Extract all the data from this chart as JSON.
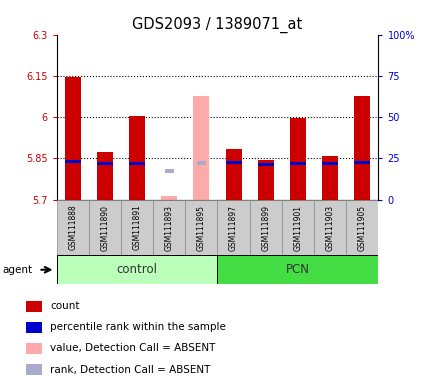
{
  "title": "GDS2093 / 1389071_at",
  "samples": [
    "GSM111888",
    "GSM111890",
    "GSM111891",
    "GSM111893",
    "GSM111895",
    "GSM111897",
    "GSM111899",
    "GSM111901",
    "GSM111903",
    "GSM111905"
  ],
  "ylim_left": [
    5.7,
    6.3
  ],
  "ylim_right": [
    0,
    100
  ],
  "yticks_left": [
    5.7,
    5.85,
    6.0,
    6.15,
    6.3
  ],
  "ytick_labels_left": [
    "5.7",
    "5.85",
    "6",
    "6.15",
    "6.3"
  ],
  "yticks_right": [
    0,
    25,
    50,
    75,
    100
  ],
  "ytick_labels_right": [
    "0",
    "25",
    "50",
    "75",
    "100%"
  ],
  "dotted_lines": [
    5.85,
    6.0,
    6.15
  ],
  "bar_bottom": 5.7,
  "red_values": [
    6.145,
    5.875,
    6.005,
    null,
    null,
    5.885,
    5.845,
    5.995,
    5.858,
    6.075
  ],
  "blue_values": [
    5.838,
    5.832,
    5.832,
    null,
    5.834,
    5.834,
    5.827,
    5.832,
    5.832,
    5.836
  ],
  "pink_values": [
    null,
    null,
    null,
    5.715,
    6.075,
    null,
    null,
    null,
    null,
    null
  ],
  "lavender_values": [
    null,
    null,
    null,
    5.804,
    5.834,
    null,
    null,
    null,
    null,
    null
  ],
  "red_color": "#cc0000",
  "blue_color": "#0000cc",
  "pink_color": "#ffaaaa",
  "lavender_color": "#aaaacc",
  "bar_width": 0.5,
  "blue_bar_height": 0.01,
  "legend_items": [
    {
      "color": "#cc0000",
      "label": "count"
    },
    {
      "color": "#0000cc",
      "label": "percentile rank within the sample"
    },
    {
      "color": "#ffaaaa",
      "label": "value, Detection Call = ABSENT"
    },
    {
      "color": "#aaaacc",
      "label": "rank, Detection Call = ABSENT"
    }
  ],
  "group_info": [
    {
      "label": "control",
      "start": 0,
      "end": 4,
      "color": "#bbffbb"
    },
    {
      "label": "PCN",
      "start": 5,
      "end": 9,
      "color": "#44dd44"
    }
  ],
  "left_axis_color": "#cc0000",
  "right_axis_color": "#0000cc",
  "tick_bg_color": "#cccccc",
  "plot_bg_color": "#ffffff"
}
